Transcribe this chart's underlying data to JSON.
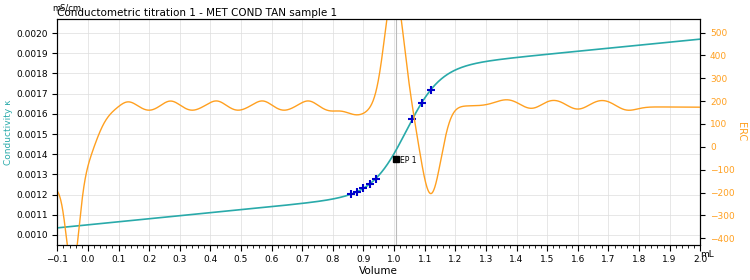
{
  "title": "Conductometric titration 1 - MET COND TAN sample 1",
  "xlabel": "Volume",
  "xlabel_unit": "mL",
  "ylabel_left": "Conductivity κ",
  "ylabel_left_unit": "mS/cm",
  "ylabel_right": "ERC",
  "xlim": [
    -0.1,
    2.0
  ],
  "ylim_left": [
    0.00095,
    0.00207
  ],
  "ylim_right": [
    -430,
    560
  ],
  "left_yticks": [
    0.001,
    0.0011,
    0.0012,
    0.0013,
    0.0014,
    0.0015,
    0.0016,
    0.0017,
    0.0018,
    0.0019,
    0.002
  ],
  "right_yticks": [
    -400,
    -300,
    -200,
    -100,
    0,
    100,
    200,
    300,
    400,
    500
  ],
  "xticks": [
    -0.1,
    0.0,
    0.1,
    0.2,
    0.3,
    0.4,
    0.5,
    0.6,
    0.7,
    0.8,
    0.9,
    1.0,
    1.1,
    1.2,
    1.3,
    1.4,
    1.5,
    1.6,
    1.7,
    1.8,
    1.9,
    2.0
  ],
  "ep_x": 1.005,
  "ep_label": "EP 1",
  "conductivity_color": "#29AAAA",
  "erc_color": "#FFA020",
  "cross_color": "#0000CC",
  "ep_line_color": "#BBBBBB",
  "background_color": "#FFFFFF",
  "grid_color": "#DDDDDD",
  "cross_x": [
    0.86,
    0.88,
    0.9,
    0.92,
    0.94,
    1.06,
    1.09,
    1.12
  ],
  "ep_marker_x": 1.005,
  "ep_marker_cond": 0.001375
}
